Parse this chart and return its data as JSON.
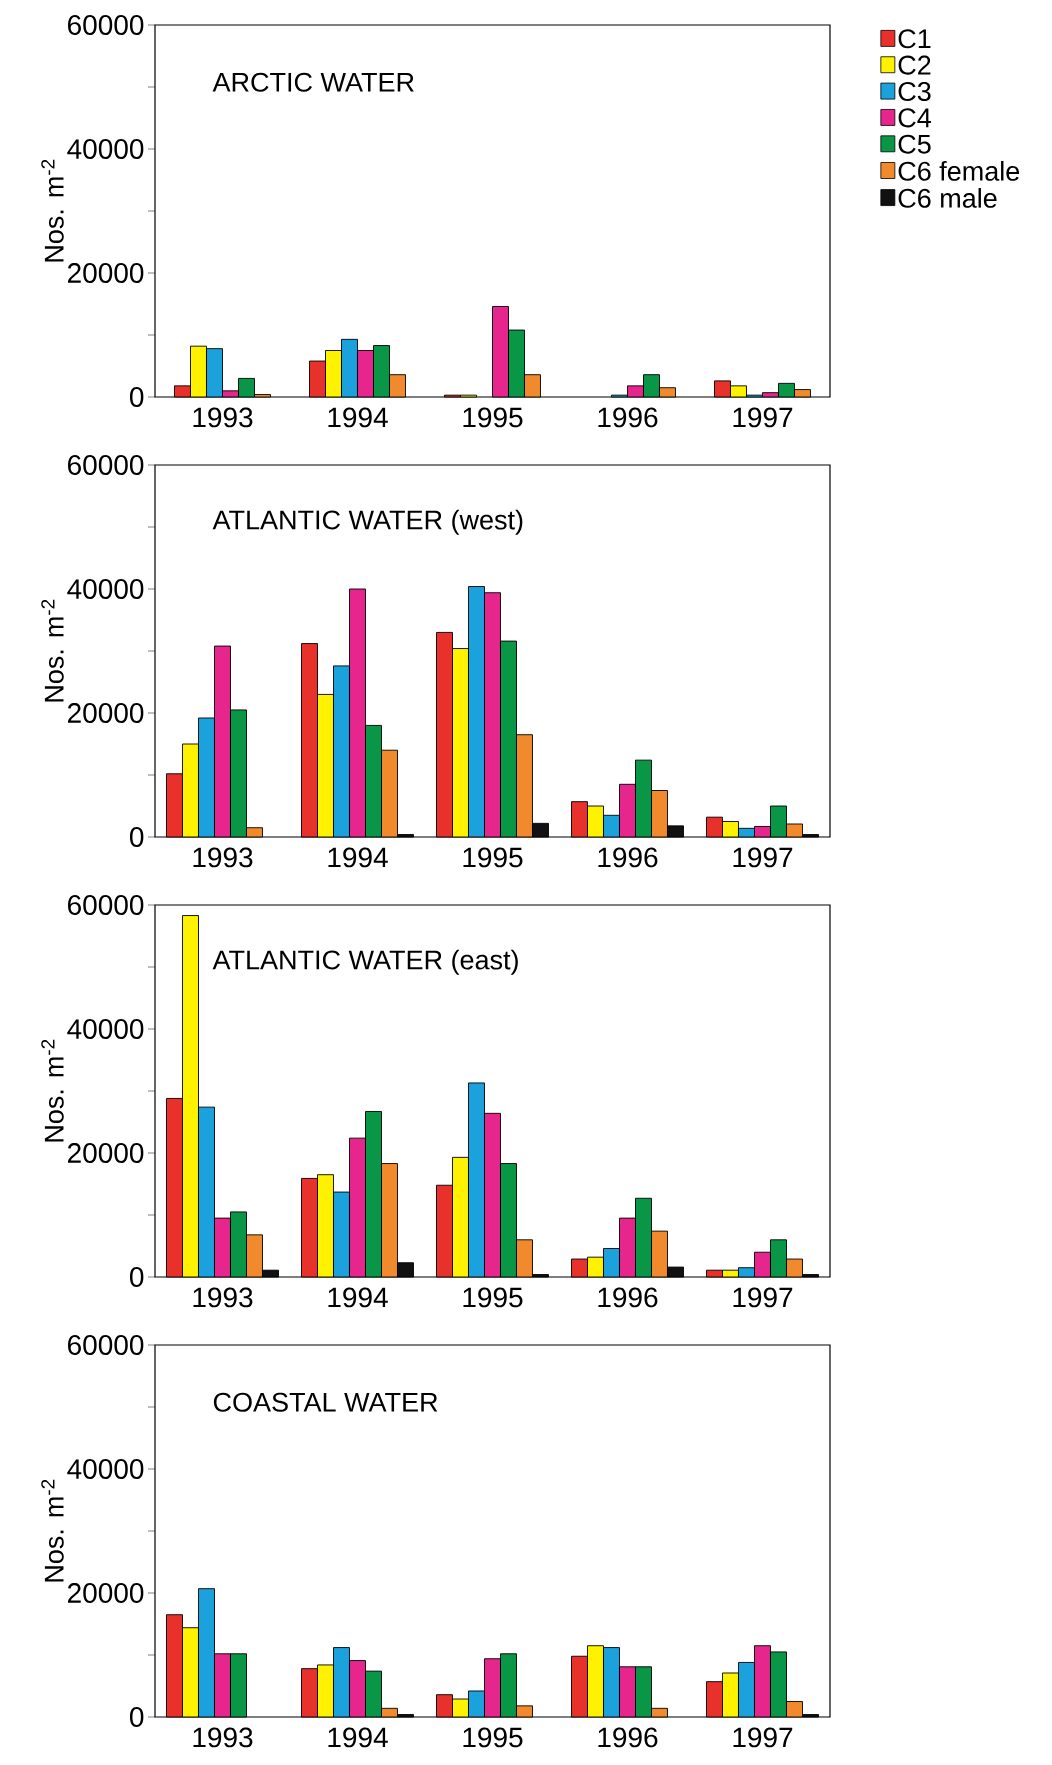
{
  "chart_data": [
    {
      "type": "bar",
      "title": "ARCTIC WATER",
      "ylabel": "Nos. m$^{-2}$",
      "categories": [
        "1993",
        "1994",
        "1995",
        "1996",
        "1997"
      ],
      "ylim": [
        0,
        60000
      ],
      "yticks": [
        0,
        {
          "value": 10000,
          "label": null
        },
        20000,
        {
          "value": 30000,
          "label": null
        },
        40000,
        {
          "value": 50000,
          "label": null
        },
        60000
      ],
      "legend": "right",
      "series": [
        {
          "name": "C1",
          "color": "#e8312a",
          "values": [
            1800,
            5800,
            300,
            null,
            2600
          ]
        },
        {
          "name": "C2",
          "color": "#fff200",
          "values": [
            8200,
            7500,
            300,
            null,
            1800
          ]
        },
        {
          "name": "C3",
          "color": "#1ba1dc",
          "values": [
            7800,
            9300,
            null,
            300,
            300
          ]
        },
        {
          "name": "C4",
          "color": "#e6268c",
          "values": [
            1000,
            7500,
            14600,
            1800,
            700
          ]
        },
        {
          "name": "C5",
          "color": "#0a9647",
          "values": [
            3000,
            8300,
            10800,
            3600,
            2200
          ]
        },
        {
          "name": "C6 female",
          "color": "#f08a2c",
          "values": [
            400,
            3600,
            3600,
            1500,
            1200
          ]
        },
        {
          "name": "C6 male",
          "color": "#111111",
          "values": [
            null,
            null,
            null,
            null,
            null
          ]
        }
      ]
    },
    {
      "type": "bar",
      "title": "ATLANTIC WATER (west)",
      "ylabel": "Nos. m$^{-2}$",
      "categories": [
        "1993",
        "1994",
        "1995",
        "1996",
        "1997"
      ],
      "ylim": [
        0,
        60000
      ],
      "yticks": [
        0,
        {
          "value": 10000,
          "label": null
        },
        20000,
        {
          "value": 30000,
          "label": null
        },
        40000,
        {
          "value": 50000,
          "label": null
        },
        60000
      ],
      "series": [
        {
          "color": "#e8312a",
          "values": [
            10200,
            31200,
            33000,
            5700,
            3200
          ]
        },
        {
          "color": "#fff200",
          "values": [
            15000,
            23000,
            30400,
            5000,
            2500
          ]
        },
        {
          "color": "#1ba1dc",
          "values": [
            19200,
            27600,
            40400,
            3500,
            1400
          ]
        },
        {
          "color": "#e6268c",
          "values": [
            30800,
            40000,
            39400,
            8500,
            1700
          ]
        },
        {
          "color": "#0a9647",
          "values": [
            20500,
            18000,
            31600,
            12400,
            5000
          ]
        },
        {
          "color": "#f08a2c",
          "values": [
            1500,
            14000,
            16500,
            7500,
            2100
          ]
        },
        {
          "color": "#111111",
          "values": [
            null,
            400,
            2200,
            1800,
            400
          ]
        }
      ]
    },
    {
      "type": "bar",
      "title": "ATLANTIC WATER (east)",
      "ylabel": "Nos. m$^{-2}$",
      "categories": [
        "1993",
        "1994",
        "1995",
        "1996",
        "1997"
      ],
      "ylim": [
        0,
        60000
      ],
      "yticks": [
        0,
        {
          "value": 10000,
          "label": null
        },
        20000,
        {
          "value": 30000,
          "label": null
        },
        40000,
        {
          "value": 50000,
          "label": null
        },
        60000
      ],
      "series": [
        {
          "color": "#e8312a",
          "values": [
            28800,
            15900,
            14800,
            2900,
            1100
          ]
        },
        {
          "color": "#fff200",
          "values": [
            58300,
            16500,
            19300,
            3200,
            1100
          ]
        },
        {
          "color": "#1ba1dc",
          "values": [
            27400,
            13700,
            31300,
            4600,
            1500
          ]
        },
        {
          "color": "#e6268c",
          "values": [
            9500,
            22400,
            26400,
            9500,
            4000
          ]
        },
        {
          "color": "#0a9647",
          "values": [
            10500,
            26700,
            18300,
            12700,
            6000
          ]
        },
        {
          "color": "#f08a2c",
          "values": [
            6800,
            18300,
            6000,
            7400,
            2900
          ]
        },
        {
          "color": "#111111",
          "values": [
            1100,
            2300,
            400,
            1600,
            400
          ]
        }
      ]
    },
    {
      "type": "bar",
      "title": "COASTAL  WATER",
      "ylabel": "Nos. m$^{-2}$",
      "categories": [
        "1993",
        "1994",
        "1995",
        "1996",
        "1997"
      ],
      "ylim": [
        0,
        60000
      ],
      "yticks": [
        0,
        {
          "value": 10000,
          "label": null
        },
        20000,
        {
          "value": 30000,
          "label": null
        },
        40000,
        {
          "value": 50000,
          "label": null
        },
        60000
      ],
      "series": [
        {
          "color": "#e8312a",
          "values": [
            16500,
            7800,
            3600,
            9800,
            5700
          ]
        },
        {
          "color": "#fff200",
          "values": [
            14400,
            8400,
            2900,
            11500,
            7100
          ]
        },
        {
          "color": "#1ba1dc",
          "values": [
            20700,
            11200,
            4200,
            11200,
            8800
          ]
        },
        {
          "color": "#e6268c",
          "values": [
            10200,
            9100,
            9400,
            8100,
            11500
          ]
        },
        {
          "color": "#0a9647",
          "values": [
            10200,
            7400,
            10200,
            8100,
            10500
          ]
        },
        {
          "color": "#f08a2c",
          "values": [
            null,
            1400,
            1800,
            1400,
            2500
          ]
        },
        {
          "color": "#111111",
          "values": [
            null,
            400,
            null,
            null,
            400
          ]
        }
      ]
    }
  ]
}
